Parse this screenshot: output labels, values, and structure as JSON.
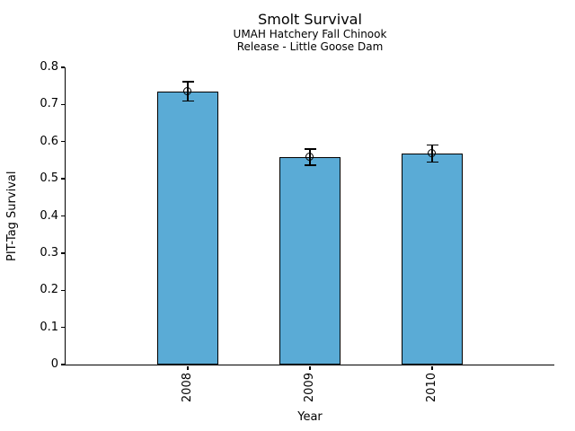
{
  "chart_data": {
    "type": "bar",
    "title": "Smolt Survival",
    "subtitle": [
      "UMAH Hatchery Fall Chinook",
      "Release - Little Goose Dam"
    ],
    "categories": [
      "2008",
      "2009",
      "2010"
    ],
    "values": [
      0.735,
      0.558,
      0.568
    ],
    "error_bars": [
      0.026,
      0.022,
      0.023
    ],
    "xlabel": "Year",
    "ylabel": "PIT-Tag Survival",
    "ylim": [
      0,
      0.8
    ],
    "ytick_labels": [
      "0",
      "0.1",
      "0.2",
      "0.3",
      "0.4",
      "0.5",
      "0.6",
      "0.7",
      "0.8"
    ],
    "xtick_rotation": 90,
    "bar_color": "#5aabd6",
    "bar_edge_color": "#000000",
    "error_color": "#000000",
    "marker": "open-circle",
    "grid": false,
    "legend": "none",
    "background_color": "#ffffff"
  }
}
